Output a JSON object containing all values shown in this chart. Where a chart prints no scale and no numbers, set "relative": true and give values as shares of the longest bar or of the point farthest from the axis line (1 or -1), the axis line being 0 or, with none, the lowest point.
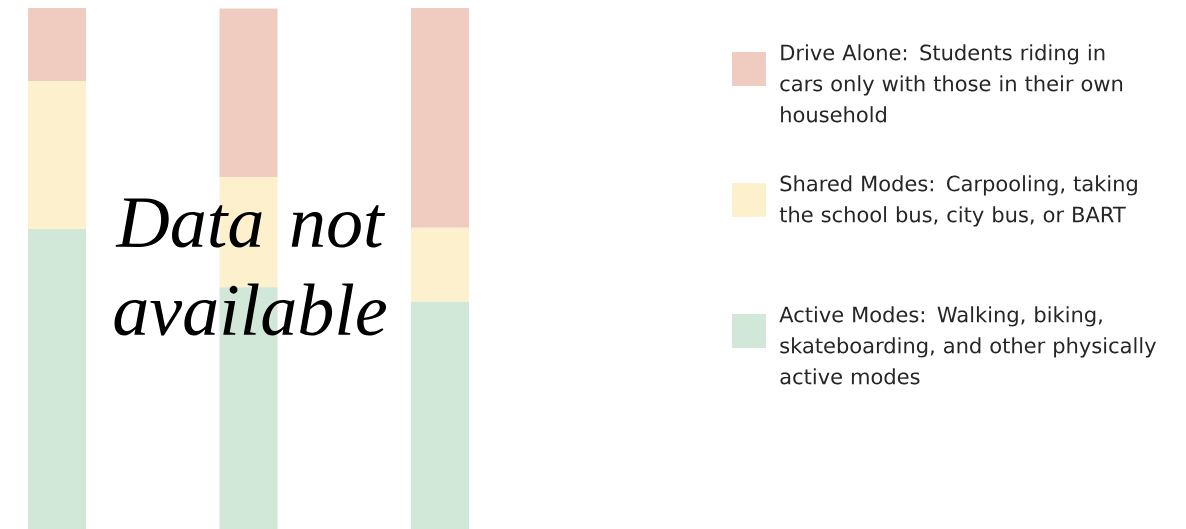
{
  "chart_data": {
    "type": "bar",
    "stacked": true,
    "relative": true,
    "legend": "right",
    "categories": [
      null,
      null,
      null
    ],
    "series": [
      {
        "name": "Active Modes: Walking, biking, skateboarding, and other physically active modes",
        "color": "#d1e7d7",
        "values": [
          0.576,
          0.464,
          0.436
        ]
      },
      {
        "name": "Shared Modes: Carpooling, taking the school bus, city bus, or BART",
        "color": "#fdf0cc",
        "values": [
          0.284,
          0.211,
          0.142
        ]
      },
      {
        "name": "Drive Alone: Students riding in cars only with those in their own household",
        "color": "#f0cbbf",
        "values": [
          0.14,
          0.324,
          0.422
        ]
      }
    ],
    "annotations": [
      "Data not available"
    ]
  }
}
